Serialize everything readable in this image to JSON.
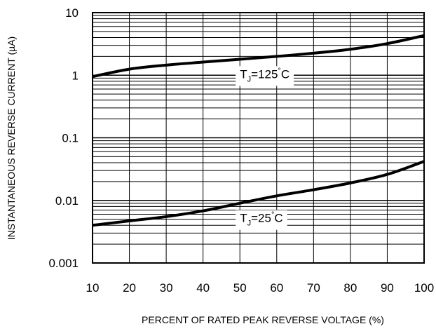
{
  "chart_data": {
    "type": "line",
    "xlabel": "PERCENT OF RATED PEAK REVERSE VOLTAGE (%)",
    "ylabel": "INSTANTANEOUS REVERSE CURRENT (µA)",
    "xlim": [
      10,
      100
    ],
    "ylim": [
      0.001,
      10
    ],
    "yscale": "log",
    "grid": true,
    "x_ticks": [
      10,
      20,
      30,
      40,
      50,
      60,
      70,
      80,
      90,
      100
    ],
    "x_tick_labels": [
      "10",
      "20",
      "30",
      "40",
      "50",
      "60",
      "70",
      "80",
      "90",
      "100"
    ],
    "y_ticks": [
      0.001,
      0.01,
      0.1,
      1,
      10
    ],
    "y_tick_labels": [
      "0.001",
      "0.01",
      "0.1",
      "1",
      "10"
    ],
    "series": [
      {
        "label_base": "T",
        "label_sub": "J",
        "label_rest": "=125",
        "label_unit": "C",
        "label_x": 50,
        "label_y": 0.9,
        "x": [
          10,
          20,
          30,
          40,
          50,
          60,
          70,
          80,
          90,
          100
        ],
        "y": [
          0.95,
          1.25,
          1.45,
          1.62,
          1.8,
          2.0,
          2.25,
          2.6,
          3.2,
          4.3
        ]
      },
      {
        "label_base": "T",
        "label_sub": "J",
        "label_rest": "=25",
        "label_unit": "C",
        "label_x": 50,
        "label_y": 0.0045,
        "x": [
          10,
          20,
          30,
          40,
          50,
          60,
          70,
          80,
          90,
          100
        ],
        "y": [
          0.004,
          0.0047,
          0.0055,
          0.0068,
          0.009,
          0.0118,
          0.0148,
          0.019,
          0.026,
          0.042
        ]
      }
    ]
  }
}
